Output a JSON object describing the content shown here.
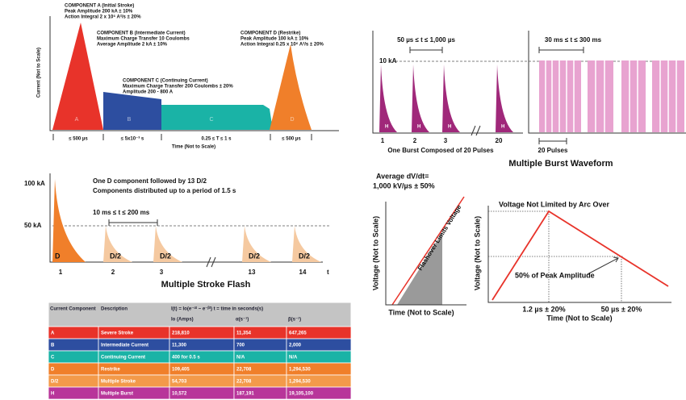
{
  "lightning_components": {
    "y_axis_label": "Current (Not to Scale)",
    "x_axis_label": "Time (Not to Scale)",
    "annotations": [
      [
        "COMPONENT A (Initial Stroke)",
        "Peak Amplitude 200 kA ± 10%",
        "Action Integral 2 x 10⁶ A²/s ± 20%"
      ],
      [
        "COMPONENT B (Intermediate Current)",
        "Maximum Charge Transfer 10 Coulombs",
        "Average Amplitude 2 kA ± 10%"
      ],
      [
        "COMPONENT C (Continuing Current)",
        "Maximum Charge Transfer 200 Coulombs ± 20%",
        "Amplitude 200 - 800 A"
      ],
      [
        "COMPONENT D (Restrike)",
        "Peak Amplitude 100 kA ± 10%",
        "Action Integral 0.25 x 10⁶ A²/s ± 20%"
      ]
    ],
    "segment_labels": [
      "A",
      "B",
      "C",
      "D"
    ],
    "durations": [
      "≤ 500 µs",
      "≤ 5x10⁻³ s",
      "0.25 ≤ T ≤ 1 s",
      "≤ 500 µs"
    ]
  },
  "burst": {
    "interval_label": "50 µs ≤ t ≤ 1,000 µs",
    "level_label": "10 kA",
    "pulse_label": "H",
    "pulse_numbers": [
      "1",
      "2",
      "3",
      "20"
    ],
    "burst_caption": "One Burst Composed of 20 Pulses",
    "burst_interval_label": "30 ms ≤ t ≤ 300 ms",
    "burst_size_label": "20 Pulses",
    "title": "Multiple Burst Waveform"
  },
  "stroke_flash": {
    "levels": [
      "100 kA",
      "50 kA"
    ],
    "description": [
      "One D component followed by 13 D/2",
      "Components distributed up to a period of 1.5 s"
    ],
    "interval_label": "10 ms ≤ t ≤ 200 ms",
    "first_label": "D",
    "subsequent_label": "D/2",
    "stroke_numbers": [
      "1",
      "2",
      "3",
      "13",
      "14"
    ],
    "x_axis_symbol": "t",
    "title": "Multiple Stroke Flash"
  },
  "table": {
    "headers": [
      "Current Component",
      "Description",
      "I(t) = Io(e⁻ᵅᵗ − e⁻ᵝᵗ) t = time in seconds(s)"
    ],
    "subheaders": [
      "Io (Amps)",
      "α(s⁻¹)",
      "β(s⁻¹)"
    ],
    "rows": [
      [
        "A",
        "Severe Stroke",
        "218,810",
        "11,354",
        "647,265"
      ],
      [
        "B",
        "Intermediate Current",
        "11,300",
        "700",
        "2,000"
      ],
      [
        "C",
        "Continuing Current",
        "400 for 0.5 s",
        "N/A",
        "N/A"
      ],
      [
        "D",
        "Restrike",
        "109,405",
        "22,708",
        "1,294,530"
      ],
      [
        "D/2",
        "Multiple Stroke",
        "54,703",
        "22,708",
        "1,294,530"
      ],
      [
        "H",
        "Multiple Burst",
        "10,572",
        "187,191",
        "19,105,100"
      ]
    ]
  },
  "voltage_limited": {
    "annotation": [
      "Average dV/dt=",
      "1,000 kV/µs ± 50%"
    ],
    "y_axis_label": "Voltage (Not to Scale)",
    "curve_label": "Flashover Limits Voltage",
    "x_axis_label": "Time (Not to Scale)"
  },
  "voltage_unlimited": {
    "title": "Voltage Not Limited by Arc Over",
    "y_axis_label": "Voltage (Not to Scale)",
    "level_label": "50% of Peak Amplitude",
    "time_labels": [
      "1.2 µs ± 20%",
      "50 µs ± 20%"
    ],
    "x_axis_label": "Time (Not to Scale)"
  }
}
